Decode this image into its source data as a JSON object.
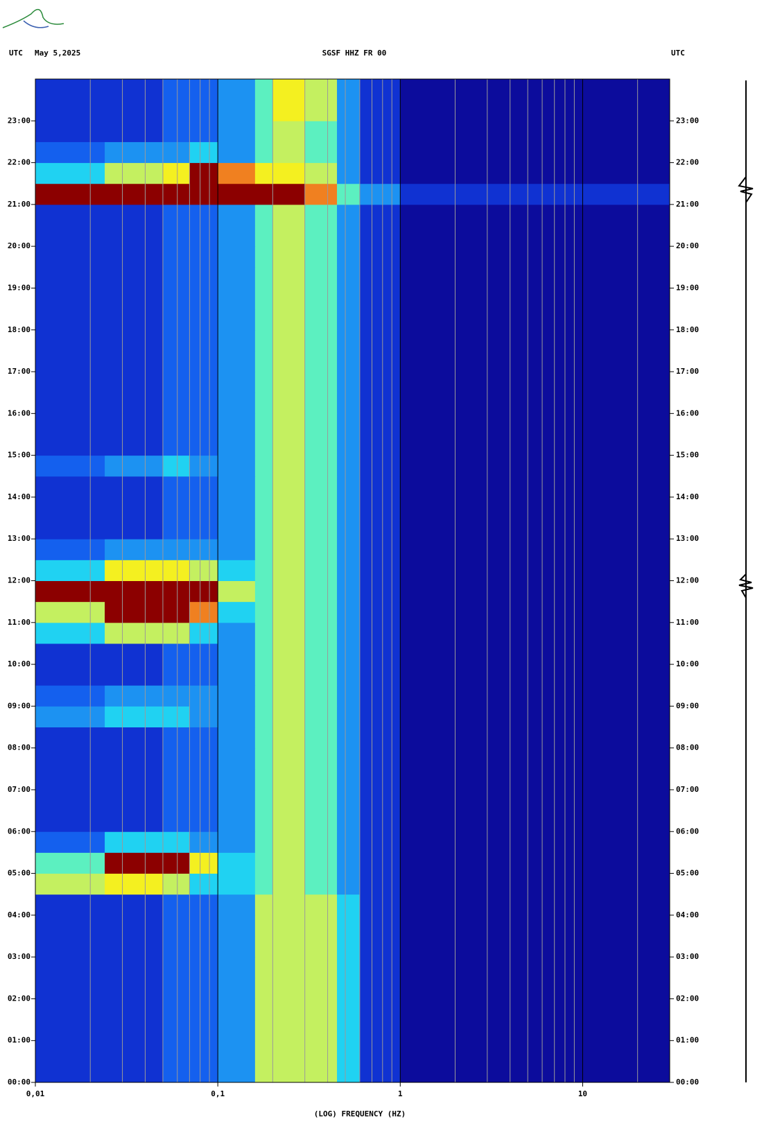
{
  "chart_data": {
    "type": "spectrogram",
    "title": "SGSF HHZ FR 00",
    "timezone_left": "UTC",
    "date": "May 5,2025",
    "timezone_right": "UTC",
    "xlabel": "(LOG) FREQUENCY (HZ)",
    "xscale": "log",
    "xlim": [
      0.01,
      30
    ],
    "xticks": [
      {
        "value": 0.01,
        "label": "0,01"
      },
      {
        "value": 0.1,
        "label": "0,1"
      },
      1,
      10
    ],
    "xminor": [
      0.02,
      0.03,
      0.04,
      0.05,
      0.06,
      0.07,
      0.08,
      0.09,
      0.2,
      0.3,
      0.4,
      0.5,
      0.6,
      0.7,
      0.8,
      0.9,
      2,
      3,
      4,
      5,
      6,
      7,
      8,
      9,
      20
    ],
    "ylim": [
      0,
      24
    ],
    "yticks": [
      {
        "value": 0,
        "label": "00:00"
      },
      {
        "value": 1,
        "label": "01:00"
      },
      {
        "value": 2,
        "label": "02:00"
      },
      {
        "value": 3,
        "label": "03:00"
      },
      {
        "value": 4,
        "label": "04:00"
      },
      {
        "value": 5,
        "label": "05:00"
      },
      {
        "value": 6,
        "label": "06:00"
      },
      {
        "value": 7,
        "label": "07:00"
      },
      {
        "value": 8,
        "label": "08:00"
      },
      {
        "value": 9,
        "label": "09:00"
      },
      {
        "value": 10,
        "label": "10:00"
      },
      {
        "value": 11,
        "label": "11:00"
      },
      {
        "value": 12,
        "label": "12:00"
      },
      {
        "value": 13,
        "label": "13:00"
      },
      {
        "value": 14,
        "label": "14:00"
      },
      {
        "value": 15,
        "label": "15:00"
      },
      {
        "value": 16,
        "label": "16:00"
      },
      {
        "value": 17,
        "label": "17:00"
      },
      {
        "value": 18,
        "label": "18:00"
      },
      {
        "value": 19,
        "label": "19:00"
      },
      {
        "value": 20,
        "label": "20:00"
      },
      {
        "value": 21,
        "label": "21:00"
      },
      {
        "value": 22,
        "label": "22:00"
      },
      {
        "value": 23,
        "label": "23:00"
      }
    ],
    "freq_edges": [
      0.01,
      0.024,
      0.05,
      0.07,
      0.1,
      0.16,
      0.2,
      0.3,
      0.45,
      0.6,
      1,
      30
    ],
    "colors": [
      "#0c0c9c",
      "#1032d2",
      "#1460ee",
      "#1c92f2",
      "#20d2f2",
      "#5cf0c0",
      "#c4f060",
      "#f4f020",
      "#f08020",
      "#8c0000"
    ],
    "z": [
      [
        1,
        1,
        2,
        2,
        3,
        6,
        6,
        6,
        4,
        1,
        0
      ],
      [
        1,
        1,
        2,
        2,
        3,
        6,
        6,
        6,
        4,
        1,
        0
      ],
      [
        1,
        1,
        2,
        2,
        3,
        6,
        6,
        6,
        4,
        1,
        0
      ],
      [
        1,
        1,
        2,
        2,
        3,
        6,
        6,
        6,
        4,
        1,
        0
      ],
      [
        1,
        1,
        2,
        2,
        3,
        6,
        6,
        6,
        4,
        1,
        0
      ],
      [
        1,
        1,
        2,
        2,
        3,
        6,
        6,
        6,
        4,
        1,
        0
      ],
      [
        1,
        1,
        2,
        2,
        3,
        6,
        6,
        6,
        4,
        1,
        0
      ],
      [
        1,
        1,
        2,
        2,
        3,
        6,
        6,
        6,
        4,
        1,
        0
      ],
      [
        1,
        1,
        2,
        2,
        3,
        6,
        6,
        6,
        4,
        1,
        0
      ],
      [
        6,
        7,
        6,
        4,
        4,
        5,
        6,
        5,
        3,
        1,
        0
      ],
      [
        5,
        9,
        9,
        7,
        4,
        5,
        6,
        5,
        3,
        1,
        0
      ],
      [
        2,
        4,
        4,
        3,
        3,
        5,
        6,
        5,
        3,
        1,
        0
      ],
      [
        1,
        1,
        2,
        2,
        3,
        5,
        6,
        5,
        3,
        1,
        0
      ],
      [
        1,
        1,
        2,
        2,
        3,
        5,
        6,
        5,
        3,
        1,
        0
      ],
      [
        1,
        1,
        2,
        2,
        3,
        5,
        6,
        5,
        3,
        1,
        0
      ],
      [
        1,
        1,
        2,
        2,
        3,
        5,
        6,
        5,
        3,
        1,
        0
      ],
      [
        1,
        1,
        2,
        2,
        3,
        5,
        6,
        5,
        3,
        1,
        0
      ],
      [
        3,
        4,
        4,
        3,
        3,
        5,
        6,
        5,
        3,
        1,
        0
      ],
      [
        2,
        3,
        3,
        3,
        3,
        5,
        6,
        5,
        3,
        1,
        0
      ],
      [
        1,
        1,
        2,
        2,
        3,
        5,
        6,
        5,
        3,
        1,
        0
      ],
      [
        1,
        1,
        2,
        2,
        3,
        5,
        6,
        5,
        3,
        1,
        0
      ],
      [
        4,
        6,
        6,
        4,
        3,
        5,
        6,
        5,
        3,
        1,
        0
      ],
      [
        6,
        9,
        9,
        8,
        4,
        5,
        6,
        5,
        3,
        1,
        0
      ],
      [
        9,
        9,
        9,
        9,
        6,
        5,
        6,
        5,
        3,
        1,
        0
      ],
      [
        4,
        7,
        7,
        6,
        4,
        5,
        6,
        5,
        3,
        1,
        0
      ],
      [
        2,
        3,
        3,
        3,
        3,
        5,
        6,
        5,
        3,
        1,
        0
      ],
      [
        1,
        1,
        2,
        2,
        3,
        5,
        6,
        5,
        3,
        1,
        0
      ],
      [
        1,
        1,
        2,
        2,
        3,
        5,
        6,
        5,
        3,
        1,
        0
      ],
      [
        1,
        1,
        2,
        2,
        3,
        5,
        6,
        5,
        3,
        1,
        0
      ],
      [
        2,
        3,
        4,
        3,
        3,
        5,
        6,
        5,
        3,
        1,
        0
      ],
      [
        1,
        1,
        2,
        2,
        3,
        5,
        6,
        5,
        3,
        1,
        0
      ],
      [
        1,
        1,
        2,
        2,
        3,
        5,
        6,
        5,
        3,
        1,
        0
      ],
      [
        1,
        1,
        2,
        2,
        3,
        5,
        6,
        5,
        3,
        1,
        0
      ],
      [
        1,
        1,
        2,
        2,
        3,
        5,
        6,
        5,
        3,
        1,
        0
      ],
      [
        1,
        1,
        2,
        2,
        3,
        5,
        6,
        5,
        3,
        1,
        0
      ],
      [
        1,
        1,
        2,
        2,
        3,
        5,
        6,
        5,
        3,
        1,
        0
      ],
      [
        1,
        1,
        2,
        2,
        3,
        5,
        6,
        5,
        3,
        1,
        0
      ],
      [
        1,
        1,
        2,
        2,
        3,
        5,
        6,
        5,
        3,
        1,
        0
      ],
      [
        1,
        1,
        2,
        2,
        3,
        5,
        6,
        5,
        3,
        1,
        0
      ],
      [
        1,
        1,
        2,
        2,
        3,
        5,
        6,
        5,
        3,
        1,
        0
      ],
      [
        1,
        1,
        2,
        2,
        3,
        5,
        6,
        5,
        3,
        1,
        0
      ],
      [
        1,
        1,
        2,
        2,
        3,
        5,
        6,
        5,
        3,
        1,
        0
      ],
      [
        9,
        9,
        9,
        9,
        9,
        9,
        9,
        8,
        5,
        3,
        1
      ],
      [
        4,
        6,
        7,
        9,
        8,
        7,
        7,
        6,
        3,
        1,
        0
      ],
      [
        2,
        3,
        3,
        4,
        3,
        5,
        6,
        5,
        3,
        1,
        0
      ],
      [
        1,
        1,
        2,
        2,
        3,
        5,
        6,
        5,
        3,
        1,
        0
      ],
      [
        1,
        1,
        2,
        2,
        3,
        5,
        7,
        6,
        3,
        1,
        0
      ],
      [
        1,
        1,
        2,
        2,
        3,
        5,
        7,
        6,
        3,
        1,
        0
      ]
    ]
  }
}
